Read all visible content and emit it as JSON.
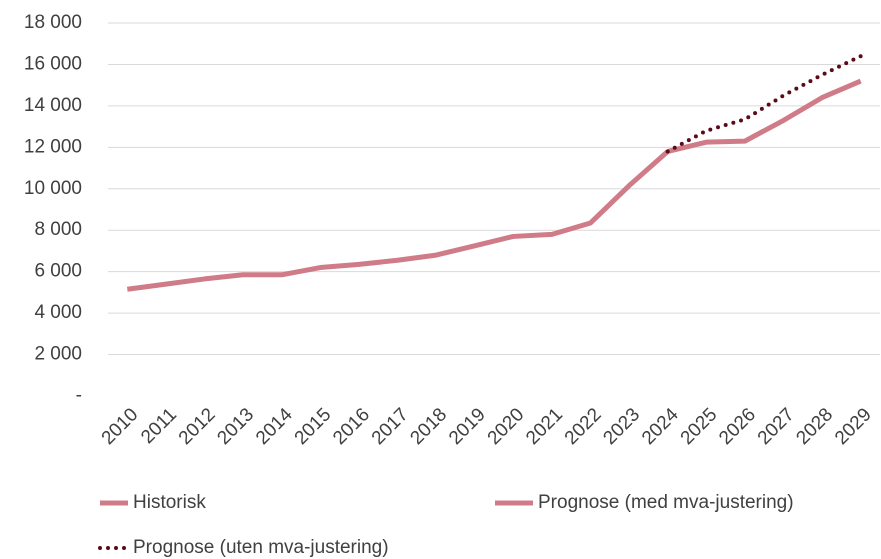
{
  "chart_data": {
    "type": "line",
    "categories": [
      "2010",
      "2011",
      "2012",
      "2013",
      "2014",
      "2015",
      "2016",
      "2017",
      "2018",
      "2019",
      "2020",
      "2021",
      "2022",
      "2023",
      "2024",
      "2025",
      "2026",
      "2027",
      "2028",
      "2029"
    ],
    "series": [
      {
        "name": "Historisk",
        "color": "#d07b88",
        "style": "solid",
        "values": [
          5150,
          5400,
          5650,
          5850,
          5850,
          6200,
          6350,
          6550,
          6800,
          7250,
          7700,
          7800,
          8350,
          10150,
          11800,
          null,
          null,
          null,
          null,
          null
        ]
      },
      {
        "name": "Prognose (med mva-justering)",
        "color": "#d07b88",
        "style": "solid",
        "values": [
          null,
          null,
          null,
          null,
          null,
          null,
          null,
          null,
          null,
          null,
          null,
          null,
          null,
          null,
          11800,
          12250,
          12300,
          13300,
          14400,
          15200
        ]
      },
      {
        "name": "Prognose (uten mva-justering)",
        "color": "#5c0a1a",
        "style": "dotted",
        "values": [
          null,
          null,
          null,
          null,
          null,
          null,
          null,
          null,
          null,
          null,
          null,
          null,
          null,
          null,
          11800,
          12800,
          13350,
          14500,
          15500,
          16400
        ]
      }
    ],
    "ylim": [
      0,
      18000
    ],
    "yticks": [
      {
        "value": 0,
        "label": "-"
      },
      {
        "value": 2000,
        "label": "2 000"
      },
      {
        "value": 4000,
        "label": "4 000"
      },
      {
        "value": 6000,
        "label": "6 000"
      },
      {
        "value": 8000,
        "label": "8 000"
      },
      {
        "value": 10000,
        "label": "10 000"
      },
      {
        "value": 12000,
        "label": "12 000"
      },
      {
        "value": 14000,
        "label": "14 000"
      },
      {
        "value": 16000,
        "label": "16 000"
      },
      {
        "value": 18000,
        "label": "18 000"
      }
    ],
    "grid": true,
    "legend": "bottom"
  }
}
